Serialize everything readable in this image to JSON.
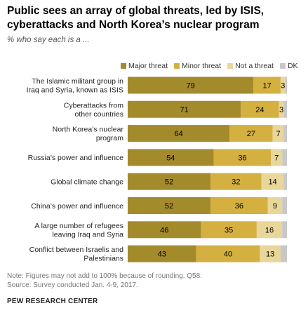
{
  "header": {
    "title": "Public sees an array of global threats, led by ISIS, cyberattacks and North Korea’s nuclear program",
    "subtitle": "% who say each is a ..."
  },
  "notes": {
    "note": "Note: Figures may not add to 100% because of rounding. Q58.",
    "source": "Source: Survey conducted Jan. 4-9, 2017.",
    "org": "PEW RESEARCH CENTER"
  },
  "colors": {
    "major": "#a38b2b",
    "minor": "#d4b040",
    "not": "#e9d69a",
    "dk": "#c8c8c8"
  },
  "chart_data": {
    "type": "bar",
    "orientation": "horizontal",
    "stacked": true,
    "legend": "top-right",
    "grid": false,
    "categories": [
      [
        "The Islamic militant group in",
        "Iraq and Syria, known as ISIS"
      ],
      [
        "Cyberattacks from",
        "other countries"
      ],
      [
        "North Korea’s nuclear",
        "program"
      ],
      [
        "Russia’s power and influence"
      ],
      [
        "Global climate change"
      ],
      [
        "China’s power and influence"
      ],
      [
        "A large number of refugees",
        "leaving Iraq and Syria"
      ],
      [
        "Conflict between Israelis and",
        "Palestinians"
      ]
    ],
    "series": [
      {
        "name": "Major threat",
        "values": [
          79,
          71,
          64,
          54,
          52,
          52,
          46,
          43
        ]
      },
      {
        "name": "Minor threat",
        "values": [
          17,
          24,
          27,
          36,
          32,
          36,
          35,
          40
        ]
      },
      {
        "name": "Not a threat",
        "values": [
          3,
          3,
          7,
          7,
          14,
          9,
          16,
          13
        ]
      },
      {
        "name": "DK",
        "values": [
          1,
          2,
          2,
          3,
          2,
          3,
          3,
          4
        ]
      }
    ],
    "xlim": [
      0,
      100
    ]
  }
}
